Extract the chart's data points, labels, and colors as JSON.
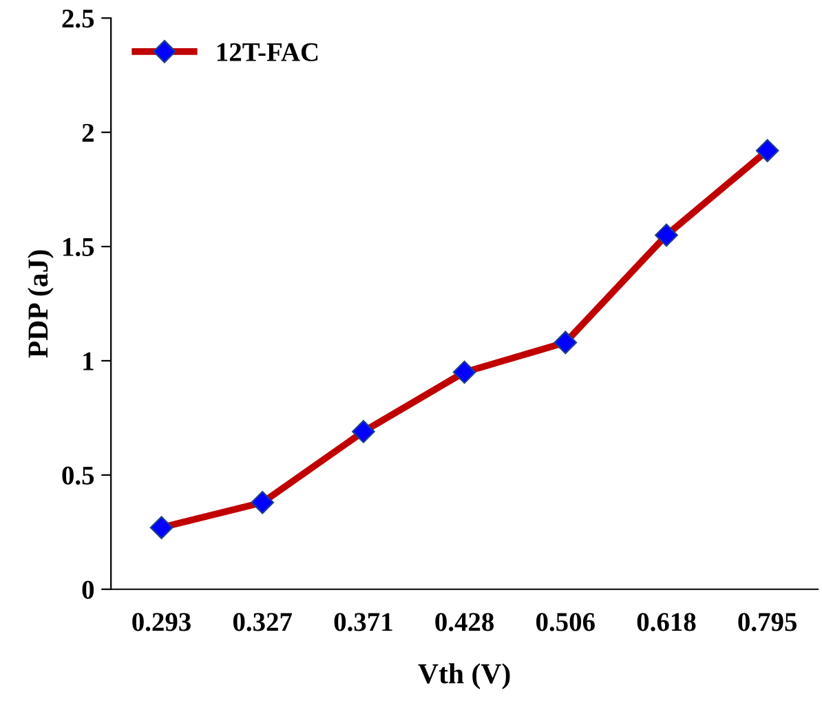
{
  "chart_data": {
    "type": "line",
    "xlabel": "Vth (V)",
    "ylabel": "PDP (aJ)",
    "categories": [
      "0.293",
      "0.327",
      "0.371",
      "0.428",
      "0.506",
      "0.618",
      "0.795"
    ],
    "series": [
      {
        "name": "12T-FAC",
        "color": "#c00000",
        "values": [
          0.27,
          0.38,
          0.69,
          0.95,
          1.08,
          1.55,
          1.92
        ]
      }
    ],
    "ylim": [
      0,
      2.5
    ],
    "yticks": [
      0,
      0.5,
      1,
      1.5,
      2,
      2.5
    ],
    "marker": "diamond",
    "line_style": "solid",
    "legend": "top left",
    "grid": false
  }
}
